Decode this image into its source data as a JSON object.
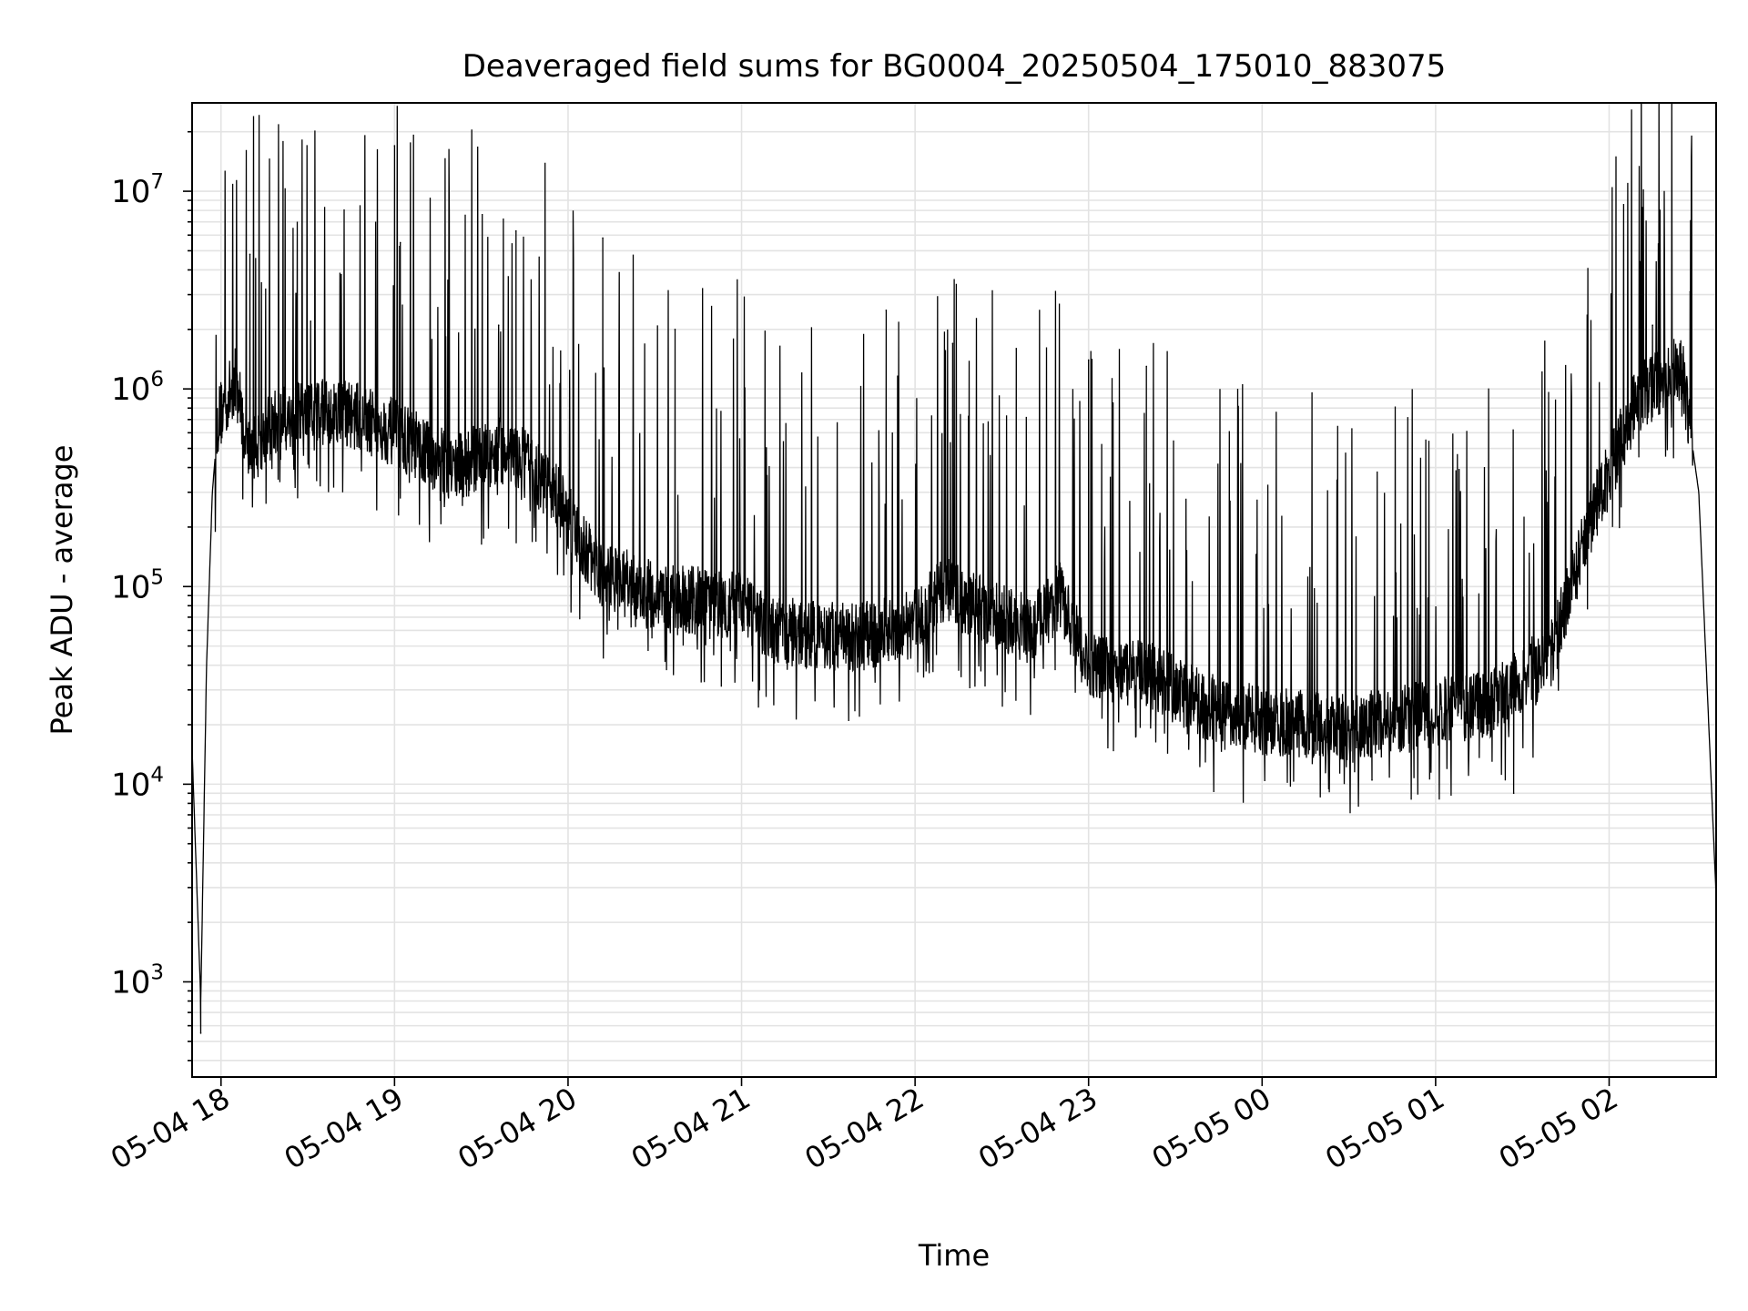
{
  "chart_data": {
    "type": "line",
    "title": "Deaveraged field sums for BG0004_20250504_175010_883075",
    "xlabel": "Time",
    "ylabel": "Peak ADU - average",
    "yscale": "log",
    "xlim": [
      "2025-05-04 17:50",
      "2025-05-05 02:37"
    ],
    "ylim": [
      330,
      28000000
    ],
    "grid": true,
    "x_ticks": [
      {
        "t": "2025-05-04 18:00",
        "label": "05-04 18"
      },
      {
        "t": "2025-05-04 19:00",
        "label": "05-04 19"
      },
      {
        "t": "2025-05-04 20:00",
        "label": "05-04 20"
      },
      {
        "t": "2025-05-04 21:00",
        "label": "05-04 21"
      },
      {
        "t": "2025-05-04 22:00",
        "label": "05-04 22"
      },
      {
        "t": "2025-05-04 23:00",
        "label": "05-04 23"
      },
      {
        "t": "2025-05-05 00:00",
        "label": "05-05 00"
      },
      {
        "t": "2025-05-05 01:00",
        "label": "05-05 01"
      },
      {
        "t": "2025-05-05 02:00",
        "label": "05-05 02"
      }
    ],
    "y_ticks": [
      {
        "value": 1000,
        "base": "10",
        "exp": "3"
      },
      {
        "value": 10000,
        "base": "10",
        "exp": "4"
      },
      {
        "value": 100000,
        "base": "10",
        "exp": "5"
      },
      {
        "value": 1000000,
        "base": "10",
        "exp": "6"
      },
      {
        "value": 10000000,
        "base": "10",
        "exp": "7"
      }
    ],
    "series": [
      {
        "color": "#000000",
        "baseline": [
          [
            "2025-05-04 17:50",
            15000
          ],
          [
            "2025-05-04 17:53",
            800
          ],
          [
            "2025-05-04 17:55",
            40000
          ],
          [
            "2025-05-04 17:57",
            300000
          ],
          [
            "2025-05-04 17:59",
            700000
          ],
          [
            "2025-05-04 18:05",
            1100000
          ],
          [
            "2025-05-04 18:10",
            500000
          ],
          [
            "2025-05-04 18:20",
            700000
          ],
          [
            "2025-05-04 18:40",
            800000
          ],
          [
            "2025-05-04 19:00",
            600000
          ],
          [
            "2025-05-04 19:20",
            400000
          ],
          [
            "2025-05-04 19:40",
            500000
          ],
          [
            "2025-05-04 19:55",
            300000
          ],
          [
            "2025-05-04 20:10",
            120000
          ],
          [
            "2025-05-04 20:30",
            90000
          ],
          [
            "2025-05-04 21:00",
            80000
          ],
          [
            "2025-05-04 21:10",
            60000
          ],
          [
            "2025-05-04 21:40",
            55000
          ],
          [
            "2025-05-04 22:00",
            65000
          ],
          [
            "2025-05-04 22:10",
            100000
          ],
          [
            "2025-05-04 22:20",
            80000
          ],
          [
            "2025-05-04 22:40",
            60000
          ],
          [
            "2025-05-04 22:50",
            90000
          ],
          [
            "2025-05-04 23:00",
            40000
          ],
          [
            "2025-05-04 23:20",
            36000
          ],
          [
            "2025-05-04 23:40",
            25000
          ],
          [
            "2025-05-05 00:00",
            21000
          ],
          [
            "2025-05-05 00:30",
            19000
          ],
          [
            "2025-05-05 01:00",
            23000
          ],
          [
            "2025-05-05 01:20",
            26000
          ],
          [
            "2025-05-05 01:40",
            45000
          ],
          [
            "2025-05-05 01:55",
            250000
          ],
          [
            "2025-05-05 02:10",
            900000
          ],
          [
            "2025-05-05 02:25",
            1300000
          ],
          [
            "2025-05-05 02:31",
            300000
          ],
          [
            "2025-05-05 02:37",
            2700
          ]
        ],
        "spikes": [
          [
            "2025-05-04 17:53",
            550
          ],
          [
            "2025-05-04 18:10",
            4800000
          ],
          [
            "2025-05-04 18:31",
            2200000
          ],
          [
            "2025-05-04 19:00",
            17000000
          ],
          [
            "2025-05-04 19:02",
            5500000
          ],
          [
            "2025-05-04 19:36",
            2100000
          ],
          [
            "2025-05-04 19:42",
            6300000
          ],
          [
            "2025-05-04 20:12",
            5800000
          ],
          [
            "2025-05-04 20:37",
            2000000
          ],
          [
            "2025-05-04 21:50",
            2500000
          ],
          [
            "2025-05-04 22:13",
            1700000
          ],
          [
            "2025-05-04 22:35",
            1600000
          ],
          [
            "2025-05-04 23:00",
            1400000
          ],
          [
            "2025-05-04 23:20",
            1300000
          ],
          [
            "2025-05-05 00:38",
            10500
          ],
          [
            "2025-05-05 01:27",
            9000
          ],
          [
            "2025-05-05 02:15",
            2100000
          ],
          [
            "2025-05-05 02:28",
            3100000
          ]
        ]
      }
    ]
  }
}
